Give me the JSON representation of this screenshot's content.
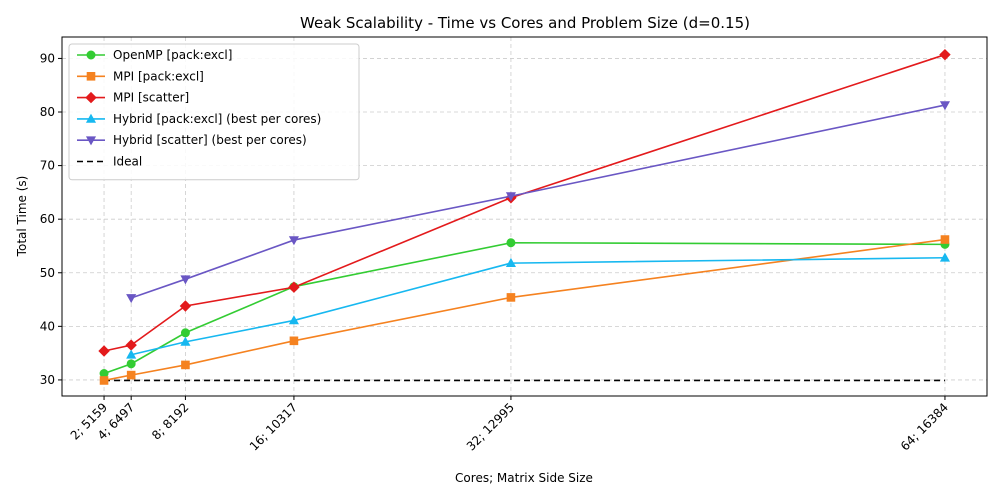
{
  "chart_data": {
    "type": "line",
    "title": "Weak Scalability - Time vs Cores and Problem Size (d=0.15)",
    "xlabel": "Cores; Matrix Side Size",
    "ylabel": "Total Time (s)",
    "x": [
      2,
      4,
      8,
      16,
      32,
      64
    ],
    "xticklabels": [
      "2; 5159",
      "4; 6497",
      "8; 8192",
      "16; 10317",
      "32; 12995",
      "64; 16384"
    ],
    "ylim": [
      27,
      94
    ],
    "yticks": [
      30,
      40,
      50,
      60,
      70,
      80,
      90
    ],
    "grid": true,
    "legend_position": "top-left",
    "series": [
      {
        "name": "OpenMP [pack:excl]",
        "color": "#33cc33",
        "marker": "circle",
        "x": [
          2,
          4,
          8,
          16,
          32,
          64
        ],
        "values": [
          31.2,
          33.0,
          38.8,
          47.4,
          55.6,
          55.3
        ]
      },
      {
        "name": "MPI [pack:excl]",
        "color": "#f58220",
        "marker": "square",
        "x": [
          2,
          4,
          8,
          16,
          32,
          64
        ],
        "values": [
          29.9,
          30.9,
          32.8,
          37.3,
          45.4,
          56.2
        ]
      },
      {
        "name": "MPI [scatter]",
        "color": "#e31a1c",
        "marker": "diamond",
        "x": [
          2,
          4,
          8,
          16,
          32,
          64
        ],
        "values": [
          35.4,
          36.5,
          43.8,
          47.3,
          64.0,
          90.7
        ]
      },
      {
        "name": "Hybrid [pack:excl] (best per cores)",
        "color": "#17b8f0",
        "marker": "triangle-up",
        "x": [
          4,
          8,
          16,
          32,
          64
        ],
        "values": [
          34.7,
          37.1,
          41.1,
          51.8,
          52.8
        ]
      },
      {
        "name": "Hybrid [scatter] (best per cores)",
        "color": "#6a57c4",
        "marker": "triangle-down",
        "x": [
          4,
          8,
          16,
          32,
          64
        ],
        "values": [
          45.3,
          48.8,
          56.1,
          64.3,
          81.3
        ]
      },
      {
        "name": "Ideal",
        "color": "#000000",
        "marker": "none",
        "dashed": true,
        "x": [
          2,
          64
        ],
        "values": [
          29.9,
          29.9
        ]
      }
    ]
  }
}
